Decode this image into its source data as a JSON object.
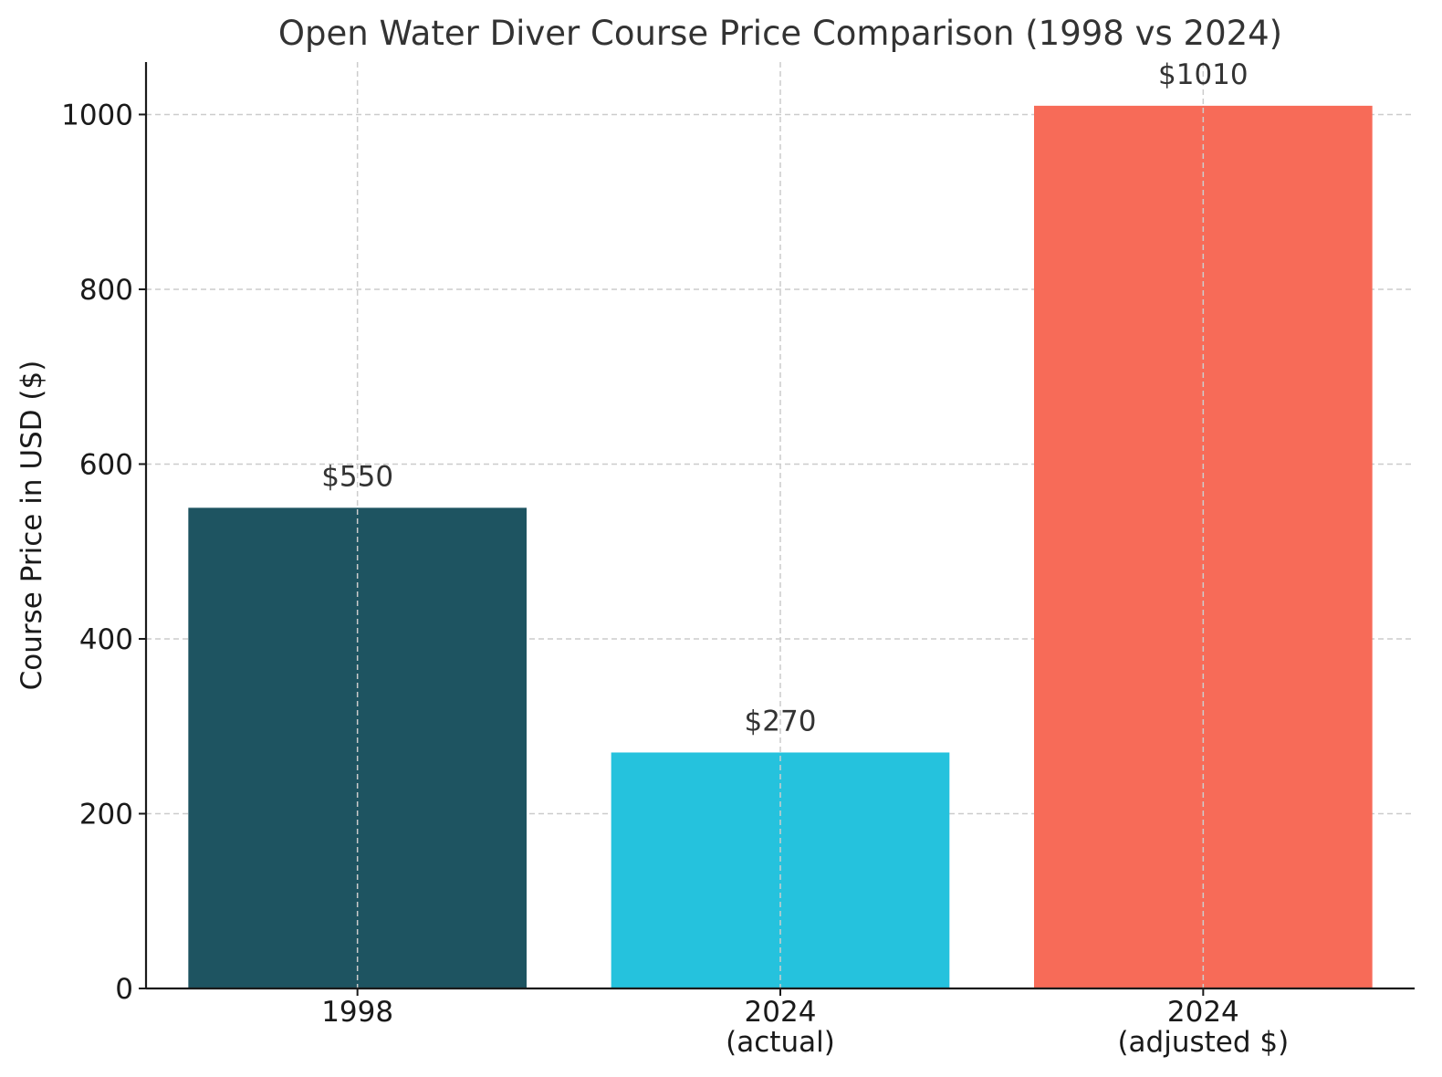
{
  "chart_data": {
    "type": "bar",
    "title": "Open Water Diver Course Price Comparison (1998 vs 2024)",
    "xlabel": "",
    "ylabel": "Course Price in USD ($)",
    "ylim": [
      0,
      1060
    ],
    "yticks": [
      0,
      200,
      400,
      600,
      800,
      1000
    ],
    "grid": true,
    "categories": [
      [
        "1998"
      ],
      [
        "2024",
        "(actual)"
      ],
      [
        "2024",
        "(adjusted $)"
      ]
    ],
    "values": [
      550,
      270,
      1010
    ],
    "data_labels": [
      "$550",
      "$270",
      "$1010"
    ],
    "colors": [
      "#1e5461",
      "#25c2dd",
      "#f76b58"
    ]
  }
}
